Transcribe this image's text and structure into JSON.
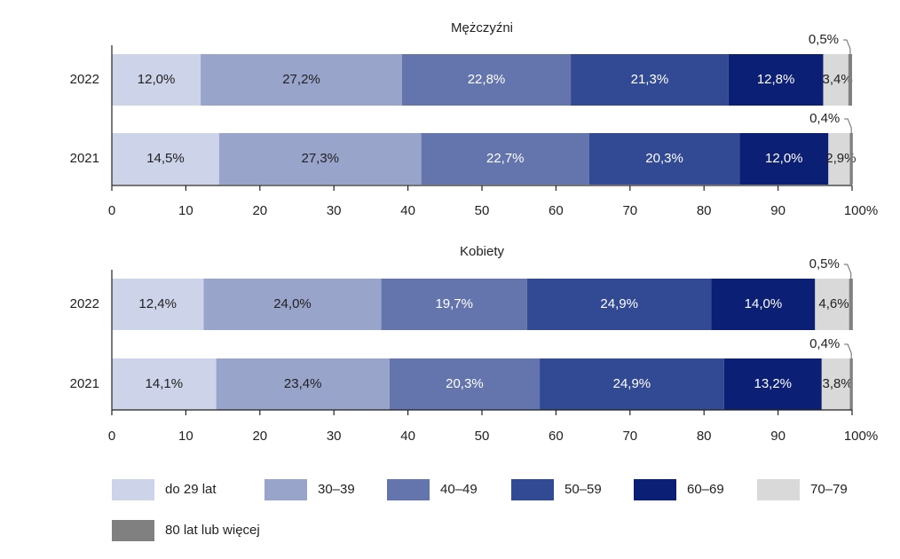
{
  "colors": {
    "do 29 lat": "#cdd3e8",
    "30–39": "#98a4ca",
    "40–49": "#6474ac",
    "50–59": "#324a94",
    "60–69": "#0b1f74",
    "70–79": "#d9d9d9",
    "80 lat lub więcej": "#808080"
  },
  "chart_data": [
    {
      "type": "bar",
      "orientation": "horizontal-stacked",
      "title": "Mężczyźni",
      "categories": [
        "2022",
        "2021"
      ],
      "xlim": [
        0,
        100
      ],
      "x_ticks": [
        "0",
        "10",
        "20",
        "30",
        "40",
        "50",
        "60",
        "70",
        "80",
        "90",
        "100%"
      ],
      "series": [
        {
          "name": "do 29 lat",
          "values": [
            12.0,
            14.5
          ],
          "labels": [
            "12,0%",
            "14,5%"
          ]
        },
        {
          "name": "30–39",
          "values": [
            27.2,
            27.3
          ],
          "labels": [
            "27,2%",
            "27,3%"
          ]
        },
        {
          "name": "40–49",
          "values": [
            22.8,
            22.7
          ],
          "labels": [
            "22,8%",
            "22,7%"
          ]
        },
        {
          "name": "50–59",
          "values": [
            21.3,
            20.3
          ],
          "labels": [
            "21,3%",
            "20,3%"
          ]
        },
        {
          "name": "60–69",
          "values": [
            12.8,
            12.0
          ],
          "labels": [
            "12,8%",
            "12,0%"
          ]
        },
        {
          "name": "70–79",
          "values": [
            3.4,
            2.9
          ],
          "labels": [
            "3,4%",
            "2,9%"
          ]
        },
        {
          "name": "80 lat lub więcej",
          "values": [
            0.5,
            0.4
          ],
          "labels": [
            "0,5%",
            "0,4%"
          ]
        }
      ]
    },
    {
      "type": "bar",
      "orientation": "horizontal-stacked",
      "title": "Kobiety",
      "categories": [
        "2022",
        "2021"
      ],
      "xlim": [
        0,
        100
      ],
      "x_ticks": [
        "0",
        "10",
        "20",
        "30",
        "40",
        "50",
        "60",
        "70",
        "80",
        "90",
        "100%"
      ],
      "series": [
        {
          "name": "do 29 lat",
          "values": [
            12.4,
            14.1
          ],
          "labels": [
            "12,4%",
            "14,1%"
          ]
        },
        {
          "name": "30–39",
          "values": [
            24.0,
            23.4
          ],
          "labels": [
            "24,0%",
            "23,4%"
          ]
        },
        {
          "name": "40–49",
          "values": [
            19.7,
            20.3
          ],
          "labels": [
            "19,7%",
            "20,3%"
          ]
        },
        {
          "name": "50–59",
          "values": [
            24.9,
            24.9
          ],
          "labels": [
            "24,9%",
            "24,9%"
          ]
        },
        {
          "name": "60–69",
          "values": [
            14.0,
            13.2
          ],
          "labels": [
            "14,0%",
            "13,2%"
          ]
        },
        {
          "name": "70–79",
          "values": [
            4.6,
            3.8
          ],
          "labels": [
            "4,6%",
            "3,8%"
          ]
        },
        {
          "name": "80 lat lub więcej",
          "values": [
            0.5,
            0.4
          ],
          "labels": [
            "0,5%",
            "0,4%"
          ]
        }
      ]
    }
  ],
  "legend": {
    "placement": "bottom",
    "items": [
      "do 29 lat",
      "30–39",
      "40–49",
      "50–59",
      "60–69",
      "70–79",
      "80 lat lub więcej"
    ]
  }
}
